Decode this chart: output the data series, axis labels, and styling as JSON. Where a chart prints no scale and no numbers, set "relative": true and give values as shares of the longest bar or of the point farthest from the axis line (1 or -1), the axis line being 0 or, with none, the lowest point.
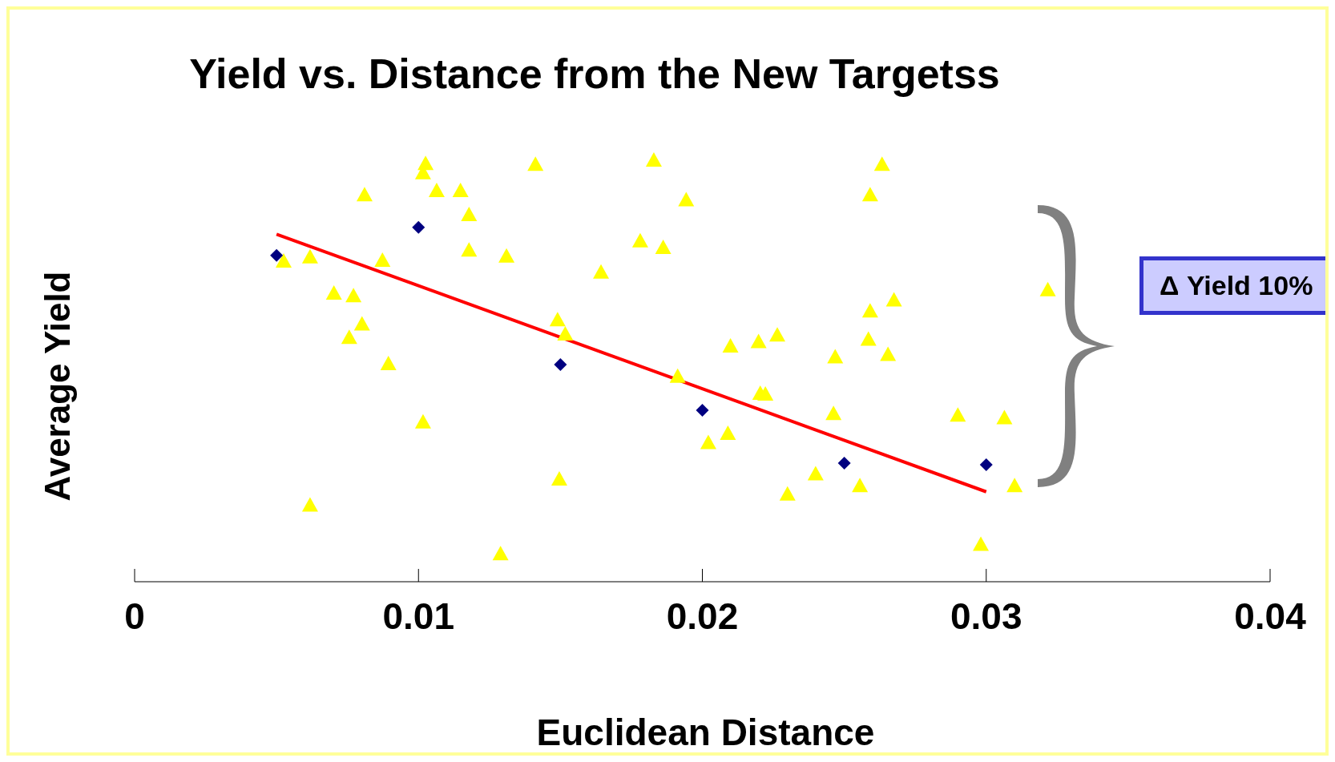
{
  "chart_data": {
    "type": "scatter",
    "title": "Yield vs. Distance from the New Targetss",
    "xlabel": "Euclidean Distance",
    "ylabel": "Average Yield",
    "relative": true,
    "xlim": [
      0,
      0.04
    ],
    "xticks": [
      0,
      0.01,
      0.02,
      0.03,
      0.04
    ],
    "grid": false,
    "legend": false,
    "annotations": [
      "Δ Yield 10%"
    ],
    "series": [
      {
        "type": "scatter",
        "marker": "triangle",
        "color": "#ffff00",
        "x": [
          0.00525,
          0.00618,
          0.00702,
          0.00771,
          0.00756,
          0.00801,
          0.0081,
          0.00873,
          0.00894,
          0.00618,
          0.01016,
          0.01025,
          0.01064,
          0.01148,
          0.01178,
          0.01178,
          0.01016,
          0.01289,
          0.0131,
          0.01412,
          0.0149,
          0.01517,
          0.01496,
          0.01643,
          0.01781,
          0.01829,
          0.01862,
          0.01943,
          0.01913,
          0.02021,
          0.0209,
          0.02099,
          0.02198,
          0.02264,
          0.02204,
          0.02222,
          0.023,
          0.02399,
          0.02468,
          0.02462,
          0.02555,
          0.02585,
          0.02591,
          0.02591,
          0.02633,
          0.02654,
          0.02675,
          0.029,
          0.02981,
          0.03064,
          0.031,
          0.03217
        ],
        "values": [
          0.761,
          0.771,
          0.685,
          0.679,
          0.58,
          0.612,
          0.918,
          0.763,
          0.518,
          0.183,
          0.97,
          0.992,
          0.928,
          0.928,
          0.871,
          0.787,
          0.38,
          0.068,
          0.773,
          0.99,
          0.622,
          0.588,
          0.245,
          0.735,
          0.809,
          1.0,
          0.793,
          0.906,
          0.488,
          0.331,
          0.353,
          0.56,
          0.57,
          0.586,
          0.448,
          0.446,
          0.209,
          0.257,
          0.534,
          0.4,
          0.229,
          0.576,
          0.643,
          0.918,
          0.99,
          0.54,
          0.669,
          0.396,
          0.09,
          0.39,
          0.229,
          0.693
        ]
      },
      {
        "type": "scatter",
        "marker": "diamond",
        "color": "#000080",
        "x": [
          0.005,
          0.01,
          0.015,
          0.02,
          0.025,
          0.03
        ],
        "values": [
          0.773,
          0.839,
          0.514,
          0.406,
          0.281,
          0.277
        ]
      },
      {
        "type": "line",
        "color": "#ff0000",
        "line_style": "solid",
        "marker": "none",
        "x": [
          0.005,
          0.03
        ],
        "values": [
          0.823,
          0.213
        ]
      }
    ]
  }
}
